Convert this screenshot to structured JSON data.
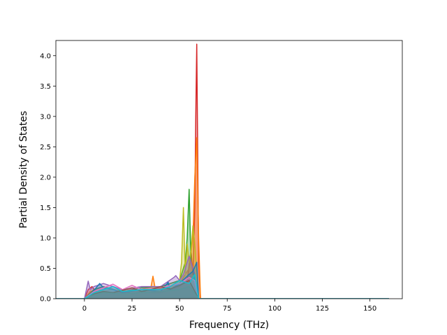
{
  "chart_data": {
    "type": "line",
    "title": "",
    "xlabel": "Frequency (THz)",
    "ylabel": "Partial Density of States",
    "xlim": [
      -15,
      167
    ],
    "ylim": [
      0,
      4.25
    ],
    "x_ticks": [
      0,
      25,
      50,
      75,
      100,
      125,
      150
    ],
    "x_tick_labels": [
      "0",
      "25",
      "50",
      "75",
      "100",
      "125",
      "150"
    ],
    "y_ticks": [
      0.0,
      0.5,
      1.0,
      1.5,
      2.0,
      2.5,
      3.0,
      3.5,
      4.0
    ],
    "y_tick_labels": [
      "0.0",
      "0.5",
      "1.0",
      "1.5",
      "2.0",
      "2.5",
      "3.0",
      "3.5",
      "4.0"
    ],
    "grid": false,
    "legend": "none",
    "series": [
      {
        "color": "#d62728",
        "x": [
          -15,
          0,
          2,
          4,
          6,
          10,
          15,
          20,
          25,
          30,
          35,
          40,
          45,
          50,
          54,
          56,
          57,
          58,
          58.5,
          59,
          59.5,
          60,
          61,
          160
        ],
        "y": [
          0,
          0,
          0.15,
          0.2,
          0.12,
          0.1,
          0.1,
          0.15,
          0.08,
          0.12,
          0.1,
          0.1,
          0.15,
          0.2,
          0.3,
          0.8,
          0.4,
          1.5,
          3.0,
          4.19,
          2.5,
          0.6,
          0,
          0
        ]
      },
      {
        "color": "#ff7f0e",
        "x": [
          -15,
          0,
          3,
          8,
          12,
          20,
          30,
          35,
          36,
          37,
          42,
          50,
          55,
          57,
          58,
          59,
          60,
          61,
          160
        ],
        "y": [
          0,
          0,
          0.12,
          0.15,
          0.1,
          0.12,
          0.15,
          0.2,
          0.37,
          0.2,
          0.15,
          0.25,
          0.5,
          1.0,
          2.0,
          2.65,
          1.0,
          0,
          0
        ]
      },
      {
        "color": "#2ca02c",
        "x": [
          -15,
          0,
          5,
          10,
          20,
          30,
          40,
          50,
          53,
          54,
          55,
          56,
          57,
          58,
          60,
          160
        ],
        "y": [
          0,
          0,
          0.15,
          0.2,
          0.12,
          0.18,
          0.2,
          0.3,
          0.6,
          1.0,
          1.8,
          0.6,
          0.5,
          0.3,
          0,
          0
        ]
      },
      {
        "color": "#bcbd22",
        "x": [
          -15,
          0,
          5,
          15,
          25,
          35,
          45,
          50,
          51,
          52,
          53,
          54,
          55,
          56,
          57,
          58,
          60,
          160
        ],
        "y": [
          0,
          0,
          0.1,
          0.15,
          0.12,
          0.18,
          0.2,
          0.3,
          0.6,
          1.5,
          0.4,
          0.9,
          0.6,
          0.8,
          1.2,
          0.9,
          0,
          0
        ]
      },
      {
        "color": "#9467bd",
        "x": [
          -15,
          0,
          2,
          3,
          5,
          10,
          20,
          30,
          40,
          47,
          48,
          50,
          52,
          55,
          58,
          60,
          160
        ],
        "y": [
          0,
          0,
          0.29,
          0.15,
          0.2,
          0.25,
          0.15,
          0.2,
          0.2,
          0.35,
          0.38,
          0.3,
          0.4,
          0.7,
          0.4,
          0,
          0
        ]
      },
      {
        "color": "#1f77b4",
        "x": [
          -15,
          0,
          4,
          8,
          10,
          15,
          20,
          30,
          40,
          44,
          45,
          50,
          55,
          57,
          59,
          60,
          160
        ],
        "y": [
          0,
          0,
          0.1,
          0.25,
          0.18,
          0.15,
          0.1,
          0.15,
          0.12,
          0.27,
          0.15,
          0.25,
          0.4,
          0.45,
          0.6,
          0,
          0
        ]
      },
      {
        "color": "#e377c2",
        "x": [
          -15,
          0,
          5,
          10,
          15,
          20,
          25,
          30,
          40,
          50,
          55,
          58,
          60,
          160
        ],
        "y": [
          0,
          0,
          0.12,
          0.18,
          0.24,
          0.15,
          0.22,
          0.15,
          0.18,
          0.25,
          0.35,
          0.3,
          0,
          0
        ]
      },
      {
        "color": "#8c564b",
        "x": [
          -15,
          0,
          5,
          10,
          15,
          20,
          25,
          30,
          35,
          40,
          45,
          50,
          55,
          60,
          160
        ],
        "y": [
          0,
          0,
          0.08,
          0.12,
          0.1,
          0.14,
          0.18,
          0.12,
          0.15,
          0.2,
          0.16,
          0.22,
          0.3,
          0,
          0
        ]
      },
      {
        "color": "#7f7f7f",
        "x": [
          -15,
          0,
          5,
          10,
          20,
          30,
          40,
          50,
          55,
          60,
          160
        ],
        "y": [
          0,
          0,
          0.06,
          0.1,
          0.08,
          0.1,
          0.12,
          0.15,
          0.2,
          0,
          0
        ]
      },
      {
        "color": "#17becf",
        "x": [
          -15,
          0,
          5,
          10,
          15,
          20,
          30,
          40,
          45,
          50,
          55,
          58,
          60,
          160
        ],
        "y": [
          0,
          0,
          0.1,
          0.15,
          0.2,
          0.12,
          0.15,
          0.15,
          0.2,
          0.3,
          0.25,
          0.4,
          0,
          0
        ]
      }
    ]
  }
}
